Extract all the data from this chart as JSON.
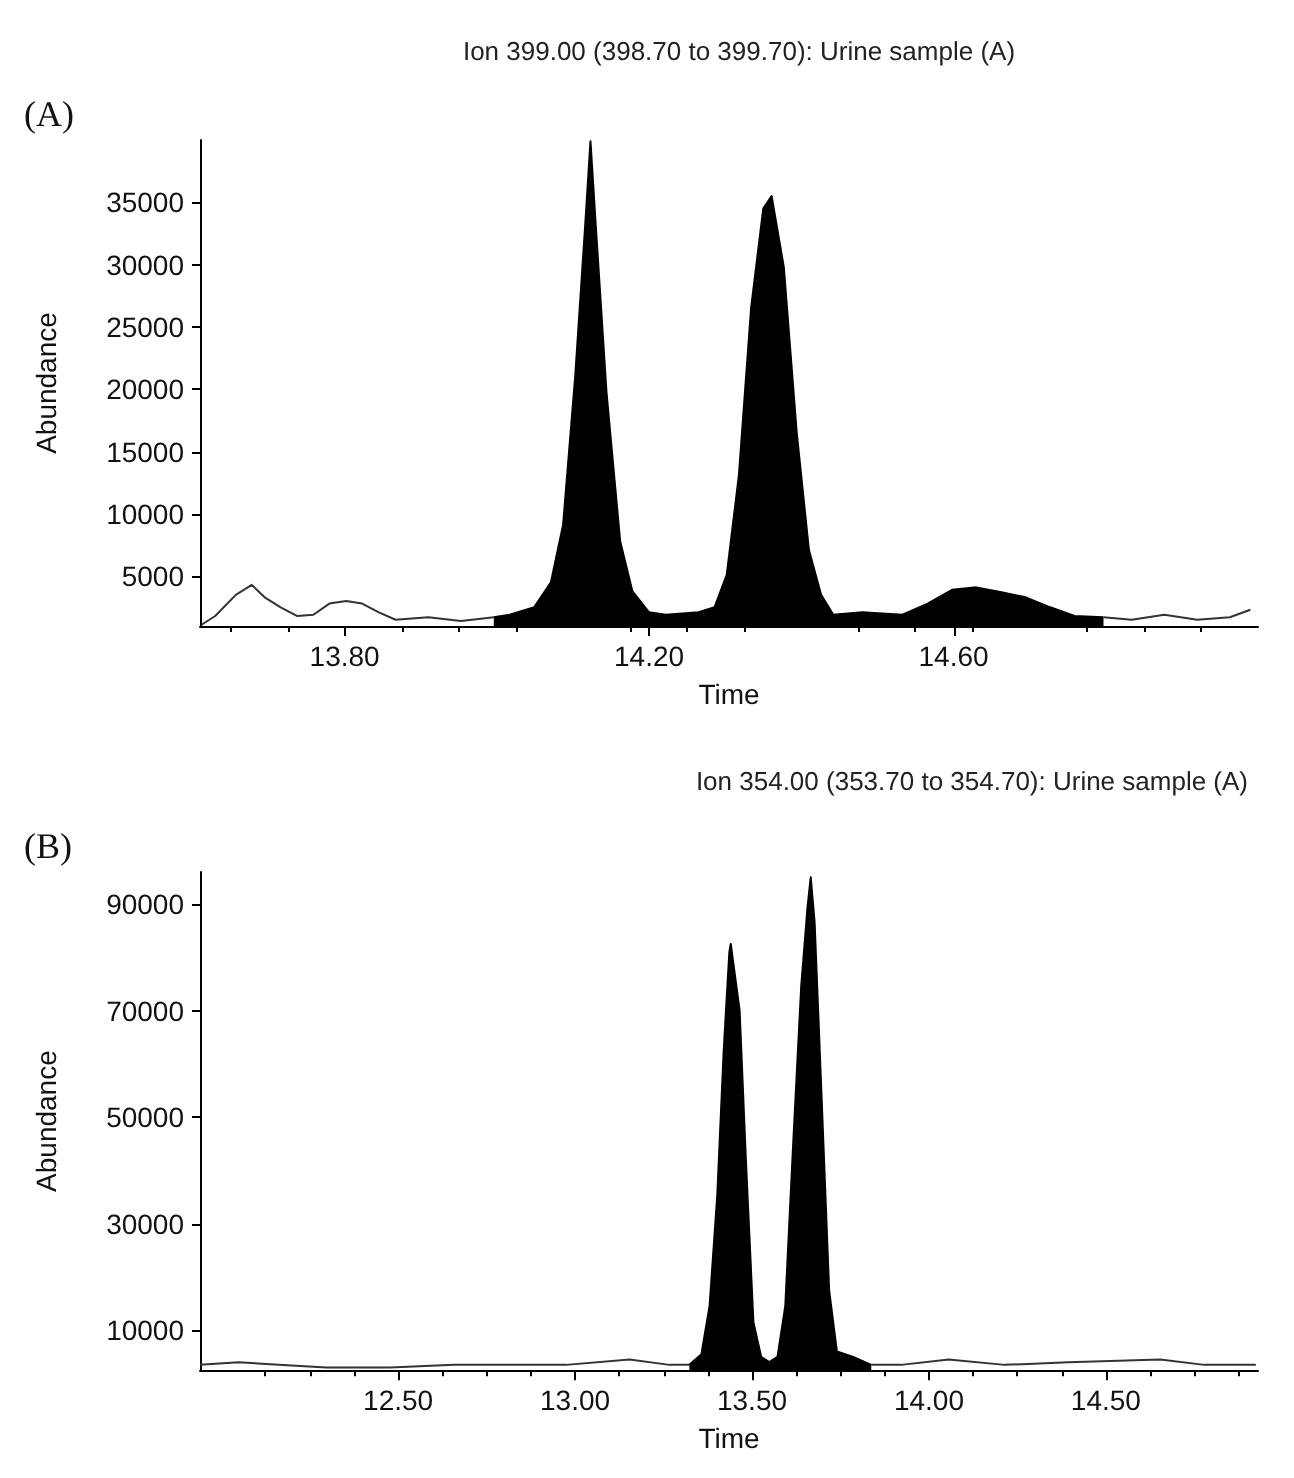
{
  "chart_data": [
    {
      "type": "line",
      "title": "Ion 399.00 (398.70 to 399.70): Urine sample (A)",
      "xlabel": "Time",
      "ylabel": "Abundance",
      "annotations": [
        "(A)"
      ],
      "marker": "none",
      "xlim": [
        13.61,
        15.0
      ],
      "xticks": [
        {
          "value": 13.8,
          "label": "13.80"
        },
        {
          "value": 14.2,
          "label": "14.20"
        },
        {
          "value": 14.6,
          "label": "14.60"
        }
      ],
      "ylim": [
        1000,
        40000
      ],
      "yticks": [
        5000,
        10000,
        15000,
        20000,
        25000,
        30000,
        35000
      ],
      "series": [
        {
          "type": "line",
          "color": "#333333",
          "x": [
            13.612,
            13.63,
            13.657,
            13.678,
            13.695,
            13.716,
            13.738,
            13.759,
            13.78,
            13.802,
            13.823,
            13.845,
            13.867,
            13.91,
            13.953,
            13.996
          ],
          "values": [
            1100,
            1800,
            3500,
            4300,
            3300,
            2500,
            1800,
            1900,
            2800,
            3000,
            2800,
            2100,
            1500,
            1700,
            1400,
            1700
          ]
        },
        {
          "type": "area",
          "color": "#000000",
          "x": [
            13.996,
            14.017,
            14.049,
            14.071,
            14.087,
            14.103,
            14.116,
            14.123,
            14.13,
            14.144,
            14.162,
            14.178,
            14.2,
            14.222,
            14.265,
            14.286,
            14.302,
            14.318,
            14.334,
            14.35,
            14.361,
            14.377,
            14.394,
            14.41,
            14.426,
            14.442,
            14.48,
            14.533,
            14.566,
            14.598,
            14.63,
            14.663,
            14.695,
            14.727,
            14.759,
            14.797
          ],
          "values": [
            1700,
            1900,
            2500,
            4500,
            9100,
            21100,
            33100,
            39900,
            33100,
            19800,
            7800,
            3800,
            2100,
            1900,
            2100,
            2500,
            5100,
            13100,
            26500,
            34500,
            35500,
            29800,
            16500,
            7100,
            3500,
            1900,
            2100,
            1900,
            2800,
            3900,
            4100,
            3700,
            3300,
            2500,
            1800,
            1700
          ]
        },
        {
          "type": "line",
          "color": "#333333",
          "x": [
            14.797,
            14.834,
            14.877,
            14.92,
            14.963,
            14.99
          ],
          "values": [
            1700,
            1500,
            1900,
            1500,
            1700,
            2300
          ]
        }
      ]
    },
    {
      "type": "line",
      "title": "Ion 354.00 (353.70 to 354.70): Urine sample (A)",
      "xlabel": "Time",
      "ylabel": "Abundance",
      "annotations": [
        "(B)"
      ],
      "marker": "none",
      "xlim": [
        11.94,
        14.93
      ],
      "xticks": [
        {
          "value": 12.5,
          "label": "12.50"
        },
        {
          "value": 13.0,
          "label": "13.00"
        },
        {
          "value": 13.5,
          "label": "13.50"
        },
        {
          "value": 14.0,
          "label": "14.00"
        },
        {
          "value": 14.5,
          "label": "14.50"
        }
      ],
      "ylim": [
        2500,
        96000
      ],
      "yticks": [
        10000,
        30000,
        50000,
        70000,
        90000
      ],
      "series": [
        {
          "type": "line",
          "color": "#333333",
          "x": [
            11.94,
            12.049,
            12.162,
            12.297,
            12.477,
            12.658,
            12.838,
            12.974,
            13.154,
            13.267,
            13.323
          ],
          "values": [
            3500,
            4000,
            3500,
            3000,
            3000,
            3500,
            3500,
            3500,
            4500,
            3500,
            3500
          ]
        },
        {
          "type": "area",
          "color": "#000000",
          "x": [
            13.323,
            13.357,
            13.38,
            13.402,
            13.42,
            13.436,
            13.44,
            13.465,
            13.483,
            13.504,
            13.526,
            13.549,
            13.572,
            13.594,
            13.616,
            13.639,
            13.657,
            13.666,
            13.677,
            13.695,
            13.718,
            13.74,
            13.786,
            13.837
          ],
          "values": [
            3500,
            5500,
            14500,
            35500,
            62500,
            81000,
            82500,
            70000,
            41500,
            11500,
            5000,
            4000,
            5000,
            14500,
            44500,
            74500,
            89500,
            95000,
            86500,
            56500,
            17500,
            6000,
            5000,
            3500
          ]
        },
        {
          "type": "line",
          "color": "#333333",
          "x": [
            13.837,
            13.921,
            14.056,
            14.214,
            14.394,
            14.654,
            14.778,
            14.924
          ],
          "values": [
            3500,
            3500,
            4500,
            3500,
            4000,
            4500,
            3500,
            3500
          ]
        }
      ]
    }
  ]
}
